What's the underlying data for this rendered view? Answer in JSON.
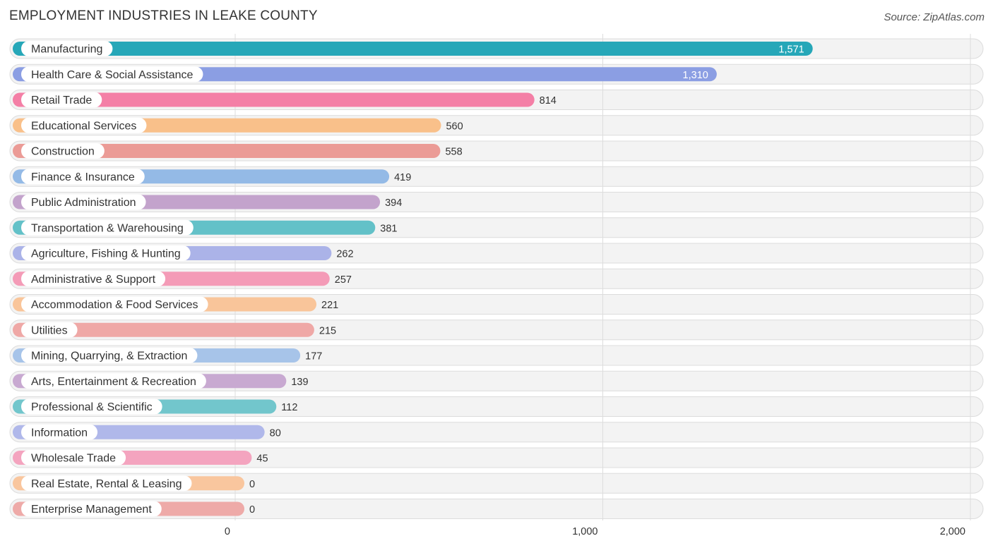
{
  "header": {
    "title": "EMPLOYMENT INDUSTRIES IN LEAKE COUNTY",
    "source": "Source: ZipAtlas.com"
  },
  "chart_data": {
    "type": "bar",
    "orientation": "horizontal",
    "title": "EMPLOYMENT INDUSTRIES IN LEAKE COUNTY",
    "xlabel": "",
    "ylabel": "",
    "xlim": [
      0,
      2000
    ],
    "ticks": [
      0,
      1000,
      2000
    ],
    "tick_labels": [
      "0",
      "1,000",
      "2,000"
    ],
    "grid": true,
    "categories": [
      "Manufacturing",
      "Health Care & Social Assistance",
      "Retail Trade",
      "Educational Services",
      "Construction",
      "Finance & Insurance",
      "Public Administration",
      "Transportation & Warehousing",
      "Agriculture, Fishing & Hunting",
      "Administrative & Support",
      "Accommodation & Food Services",
      "Utilities",
      "Mining, Quarrying, & Extraction",
      "Arts, Entertainment & Recreation",
      "Professional & Scientific",
      "Information",
      "Wholesale Trade",
      "Real Estate, Rental & Leasing",
      "Enterprise Management"
    ],
    "values": [
      1571,
      1310,
      814,
      560,
      558,
      419,
      394,
      381,
      262,
      257,
      221,
      215,
      177,
      139,
      112,
      80,
      45,
      0,
      0
    ],
    "value_labels": [
      "1,571",
      "1,310",
      "814",
      "560",
      "558",
      "419",
      "394",
      "381",
      "262",
      "257",
      "221",
      "215",
      "177",
      "139",
      "112",
      "80",
      "45",
      "0",
      "0"
    ],
    "colors": [
      "#26a7b8",
      "#8b9ee3",
      "#f47fa6",
      "#f9c08a",
      "#eb9b96",
      "#94bae6",
      "#c3a3cc",
      "#63c1c8",
      "#abb3e8",
      "#f49bb7",
      "#f9c59a",
      "#efa8a6",
      "#a7c4e9",
      "#c8a9d1",
      "#72c6cc",
      "#b0b8ea",
      "#f4a4bf",
      "#f9c69e",
      "#eeaaa8"
    ]
  }
}
